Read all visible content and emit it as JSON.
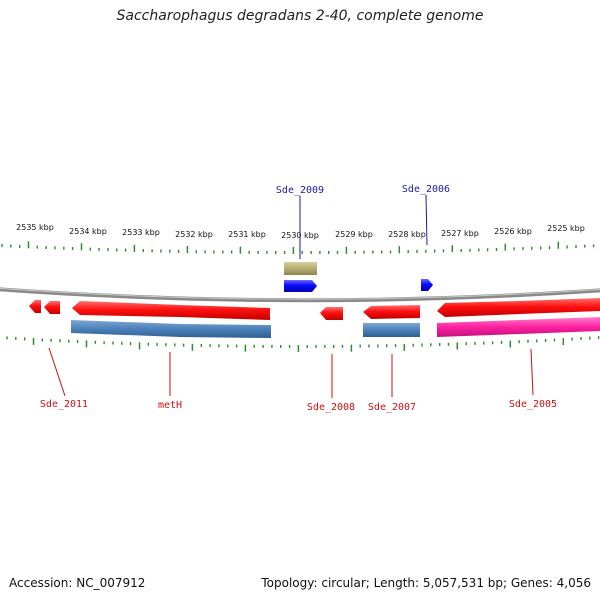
{
  "title": "Saccharophagus degradans 2-40, complete genome",
  "footer": {
    "accession": "Accession: NC_007912",
    "summary": "Topology: circular; Length: 5,057,531 bp; Genes: 4,056"
  },
  "colors": {
    "backbone": "#8a8a8a",
    "tick": "#2e8b2e",
    "forward_gene": "#1a1aff",
    "forward_cds": "#b8b07a",
    "reverse_gene": "#ff1a1a",
    "reverse_cds_blue": "#4f86bd",
    "reverse_cds_pink": "#ff2aa6",
    "label_forward": "#1a1aaa",
    "label_reverse": "#cc1111"
  },
  "kbp_labels": [
    "2535 kbp",
    "2534 kbp",
    "2533 kbp",
    "2532 kbp",
    "2531 kbp",
    "2530 kbp",
    "2529 kbp",
    "2528 kbp",
    "2527 kbp",
    "2526 kbp",
    "2525 kbp"
  ],
  "labels": {
    "Sde_2009": "Sde_2009",
    "Sde_2006": "Sde_2006",
    "Sde_2011": "Sde_2011",
    "metH": "metH",
    "Sde_2008": "Sde_2008",
    "Sde_2007": "Sde_2007",
    "Sde_2005": "Sde_2005"
  }
}
